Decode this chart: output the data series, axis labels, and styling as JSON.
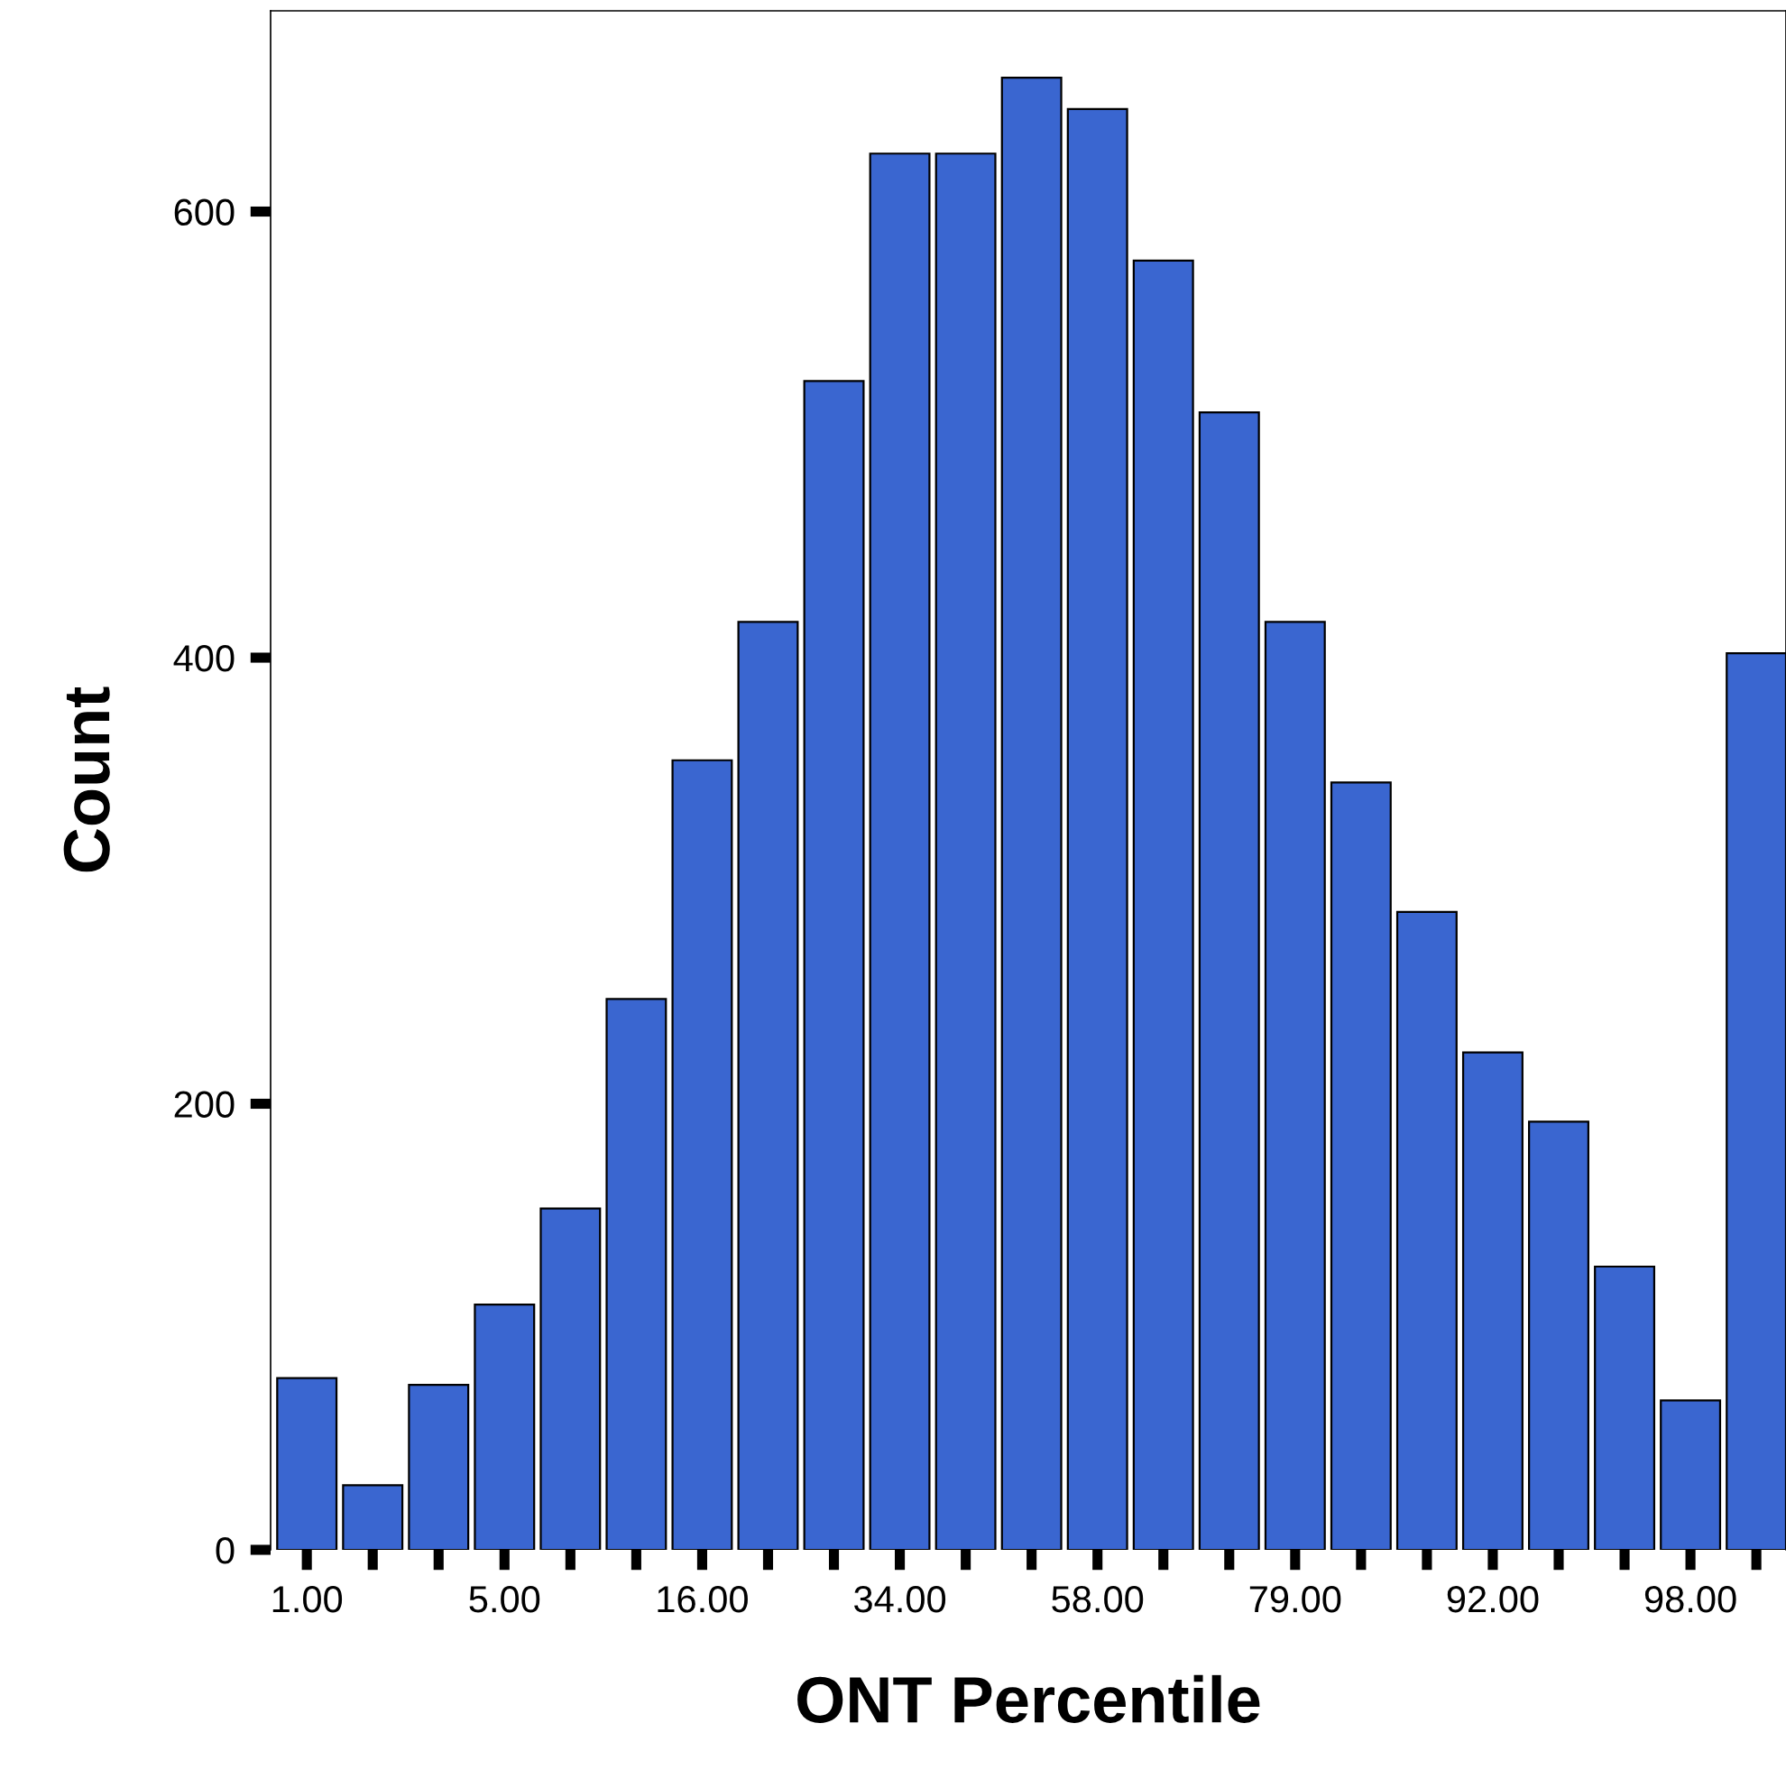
{
  "chart_data": {
    "type": "bar",
    "xlabel": "ONT Percentile",
    "ylabel": "Count",
    "categories": [
      "1.00",
      null,
      null,
      "5.00",
      null,
      null,
      "16.00",
      null,
      null,
      "34.00",
      null,
      null,
      "58.00",
      null,
      null,
      "79.00",
      null,
      null,
      "92.00",
      null,
      null,
      "98.00",
      null
    ],
    "values": [
      77,
      29,
      74,
      110,
      153,
      247,
      354,
      416,
      524,
      626,
      626,
      660,
      646,
      578,
      510,
      416,
      344,
      286,
      223,
      192,
      127,
      67,
      402
    ],
    "color": "#3a66d0",
    "ylim": [
      0,
      690
    ],
    "yticks": [
      0,
      200,
      400,
      600
    ],
    "grid": false
  }
}
